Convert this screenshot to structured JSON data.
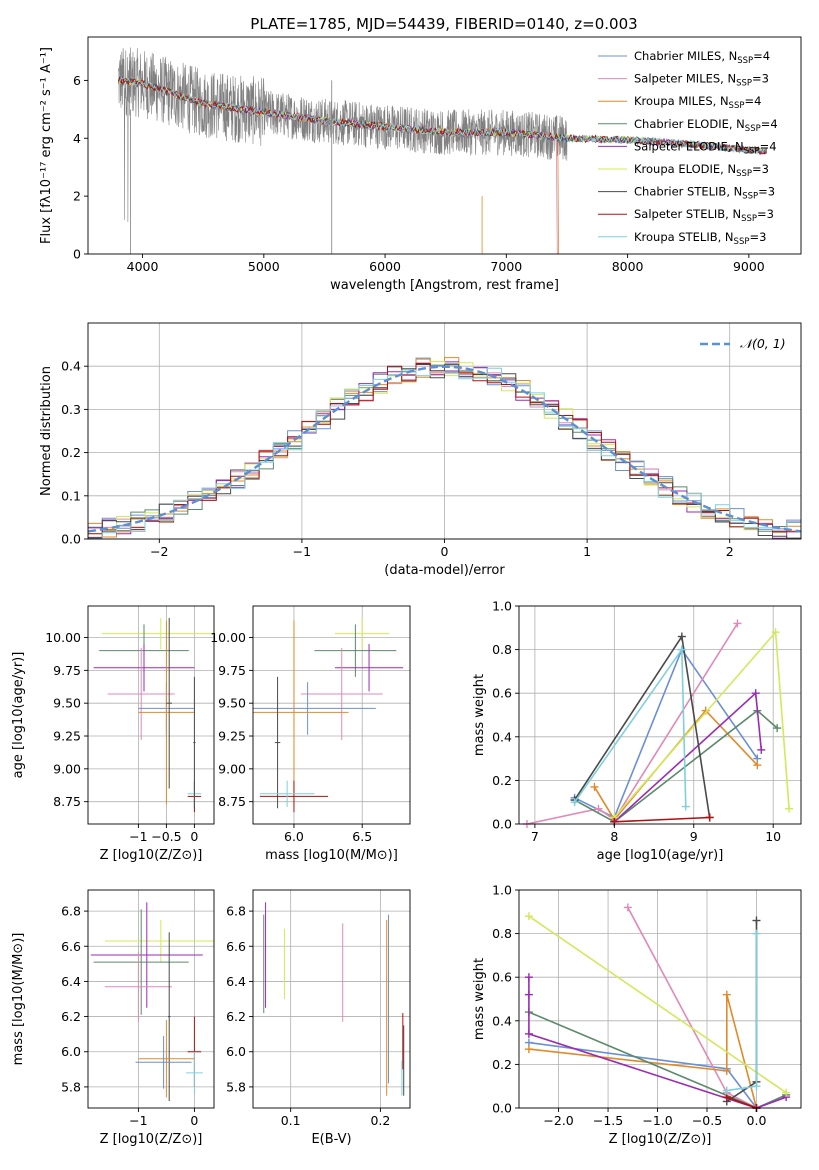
{
  "figure": {
    "title": "PLATE=1785, MJD=54439, FIBERID=0140, z=0.003"
  },
  "models": [
    {
      "name": "Chabrier MILES",
      "nssp": "4",
      "color": "#6b8fd6"
    },
    {
      "name": "Salpeter MILES",
      "nssp": "3",
      "color": "#e089b8"
    },
    {
      "name": "Kroupa MILES",
      "nssp": "4",
      "color": "#e08a2a"
    },
    {
      "name": "Chabrier ELODIE",
      "nssp": "4",
      "color": "#5b8a6a"
    },
    {
      "name": "Salpeter ELODIE",
      "nssp": "4",
      "color": "#9b2bb3"
    },
    {
      "name": "Kroupa ELODIE",
      "nssp": "3",
      "color": "#d4e85a"
    },
    {
      "name": "Chabrier STELIB",
      "nssp": "3",
      "color": "#4a4a4a"
    },
    {
      "name": "Salpeter STELIB",
      "nssp": "3",
      "color": "#b01010"
    },
    {
      "name": "Kroupa STELIB",
      "nssp": "3",
      "color": "#7fd0dc"
    }
  ],
  "chart_data": [
    {
      "id": "spectrum",
      "type": "line",
      "xlabel": "wavelength [Angstrom, rest frame]",
      "ylabel": "Flux [fλ10⁻¹⁷ erg cm⁻² s⁻¹ A⁻¹]",
      "xlim": [
        3550,
        9430
      ],
      "ylim": [
        0,
        7.5
      ],
      "xticks": [
        4000,
        5000,
        6000,
        7000,
        8000,
        9000
      ],
      "yticks": [
        0,
        2,
        4,
        6
      ],
      "legend": "top-right",
      "data_color": "#808080",
      "data_description_points": [
        [
          3800,
          6.0
        ],
        [
          4000,
          5.9
        ],
        [
          4500,
          5.2
        ],
        [
          5000,
          4.9
        ],
        [
          5500,
          4.6
        ],
        [
          6000,
          4.4
        ],
        [
          6500,
          4.2
        ],
        [
          7000,
          4.2
        ],
        [
          7500,
          4.0
        ],
        [
          8000,
          3.95
        ],
        [
          8500,
          3.8
        ],
        [
          9000,
          3.6
        ],
        [
          9150,
          3.55
        ]
      ],
      "model_ends": [
        {
          "model": 0,
          "end": 9150
        },
        {
          "model": 1,
          "end": 7420
        },
        {
          "model": 2,
          "end": 7430
        },
        {
          "model": 3,
          "end": 9150
        },
        {
          "model": 4,
          "end": 9150
        },
        {
          "model": 5,
          "end": 9150
        },
        {
          "model": 6,
          "end": 9150
        },
        {
          "model": 7,
          "end": 9150
        },
        {
          "model": 8,
          "end": 9150
        }
      ]
    },
    {
      "id": "residuals",
      "type": "line",
      "xlabel": "(data-model)/error",
      "ylabel": "Normed distribution",
      "xlim": [
        -2.5,
        2.5
      ],
      "ylim": [
        0,
        0.5
      ],
      "xticks": [
        -2,
        -1,
        0,
        1,
        2
      ],
      "yticks": [
        0.0,
        0.1,
        0.2,
        0.3,
        0.4
      ],
      "gaussian_label": "𝒩(0, 1)",
      "gaussian_color": "#5b8fd6",
      "legend": "top-right"
    },
    {
      "id": "age_vs_Z",
      "type": "scatter",
      "xlabel": "Z [log10(Z/Z⊙)]",
      "ylabel": "age  [log10(age/yr)]",
      "xlim": [
        -1.9,
        0.35
      ],
      "ylim": [
        8.58,
        10.24
      ],
      "xticks": [
        -1,
        -0.5,
        0
      ],
      "yticks": [
        8.75,
        9.0,
        9.25,
        9.5,
        9.75,
        10.0
      ],
      "points": [
        {
          "m": 5,
          "x": -0.6,
          "y": 10.03,
          "xe": 1.05,
          "ye": 0.12
        },
        {
          "m": 3,
          "x": -0.9,
          "y": 9.9,
          "xe": 0.8,
          "ye": 0.2
        },
        {
          "m": 4,
          "x": -0.9,
          "y": 9.77,
          "xe": 0.9,
          "ye": 0.18
        },
        {
          "m": 1,
          "x": -0.95,
          "y": 9.57,
          "xe": 0.6,
          "ye": 0.35
        },
        {
          "m": 0,
          "x": -0.5,
          "y": 9.46,
          "xe": 0.5,
          "ye": 0.2
        },
        {
          "m": 2,
          "x": -0.5,
          "y": 9.43,
          "xe": 0.5,
          "ye": 0.7
        },
        {
          "m": 6,
          "x": -0.45,
          "y": 9.5,
          "xe": 0.05,
          "ye": 0.65
        },
        {
          "m": 7,
          "x": 0.0,
          "y": 8.79,
          "xe": 0.12,
          "ye": 0.12
        },
        {
          "m": 8,
          "x": 0.0,
          "y": 8.81,
          "xe": 0.12,
          "ye": 0.1
        },
        {
          "m": 6,
          "x": 0.0,
          "y": 9.2,
          "xe": 0.02,
          "ye": 0.5
        }
      ]
    },
    {
      "id": "age_vs_mass",
      "type": "scatter",
      "xlabel": "mass [log10(M/M⊙)]",
      "ylabel": "",
      "xlim": [
        5.7,
        6.85
      ],
      "ylim": [
        8.58,
        10.24
      ],
      "xticks": [
        6.0,
        6.5
      ],
      "yticks": [
        8.75,
        9.0,
        9.25,
        9.5,
        9.75,
        10.0
      ],
      "points": [
        {
          "m": 5,
          "x": 6.5,
          "y": 10.03,
          "xe": 0.2,
          "ye": 0.12
        },
        {
          "m": 3,
          "x": 6.45,
          "y": 9.9,
          "xe": 0.3,
          "ye": 0.2
        },
        {
          "m": 4,
          "x": 6.55,
          "y": 9.77,
          "xe": 0.25,
          "ye": 0.18
        },
        {
          "m": 1,
          "x": 6.35,
          "y": 9.57,
          "xe": 0.3,
          "ye": 0.35
        },
        {
          "m": 0,
          "x": 6.1,
          "y": 9.46,
          "xe": 0.5,
          "ye": 0.2
        },
        {
          "m": 2,
          "x": 6.0,
          "y": 9.43,
          "xe": 0.4,
          "ye": 0.7
        },
        {
          "m": 6,
          "x": 5.88,
          "y": 9.2,
          "xe": 0.02,
          "ye": 0.5
        },
        {
          "m": 7,
          "x": 6.0,
          "y": 8.79,
          "xe": 0.25,
          "ye": 0.12
        },
        {
          "m": 8,
          "x": 5.95,
          "y": 8.81,
          "xe": 0.2,
          "ye": 0.1
        }
      ]
    },
    {
      "id": "weight_vs_age",
      "type": "line",
      "xlabel": "age  [log10(age/yr)]",
      "ylabel": "mass weight",
      "xlim": [
        6.8,
        10.35
      ],
      "ylim": [
        0.0,
        1.0
      ],
      "xticks": [
        7,
        8,
        9,
        10
      ],
      "yticks": [
        0.0,
        0.2,
        0.4,
        0.6,
        0.8,
        1.0
      ],
      "series": [
        {
          "m": 0,
          "x": [
            7.5,
            8.0,
            8.85,
            9.8
          ],
          "y": [
            0.12,
            0.03,
            0.8,
            0.3
          ]
        },
        {
          "m": 1,
          "x": [
            6.9,
            7.8,
            8.0,
            9.55
          ],
          "y": [
            0.0,
            0.07,
            0.02,
            0.92
          ]
        },
        {
          "m": 2,
          "x": [
            7.75,
            8.0,
            9.15,
            9.8
          ],
          "y": [
            0.17,
            0.02,
            0.52,
            0.27
          ]
        },
        {
          "m": 3,
          "x": [
            7.5,
            8.0,
            9.8,
            10.05
          ],
          "y": [
            0.11,
            0.01,
            0.52,
            0.44
          ]
        },
        {
          "m": 4,
          "x": [
            8.0,
            9.78,
            9.85
          ],
          "y": [
            0.01,
            0.6,
            0.34
          ]
        },
        {
          "m": 5,
          "x": [
            8.0,
            10.03,
            10.2
          ],
          "y": [
            0.03,
            0.88,
            0.07
          ]
        },
        {
          "m": 6,
          "x": [
            7.5,
            8.85,
            9.2
          ],
          "y": [
            0.11,
            0.86,
            0.03
          ]
        },
        {
          "m": 7,
          "x": [
            8.0,
            9.2
          ],
          "y": [
            0.01,
            0.03
          ]
        },
        {
          "m": 8,
          "x": [
            7.5,
            8.85,
            8.9
          ],
          "y": [
            0.1,
            0.8,
            0.08
          ]
        }
      ]
    },
    {
      "id": "mass_vs_Z",
      "type": "scatter",
      "xlabel": "Z [log10(Z/Z⊙)]",
      "ylabel": "mass [log10(M/M⊙)]",
      "xlim": [
        -1.9,
        0.35
      ],
      "ylim": [
        5.68,
        6.92
      ],
      "xticks": [
        -1,
        0
      ],
      "yticks": [
        5.8,
        6.0,
        6.2,
        6.4,
        6.6,
        6.8
      ],
      "points": [
        {
          "m": 5,
          "x": -0.6,
          "y": 6.63,
          "xe": 1.0,
          "ye": 0.12
        },
        {
          "m": 4,
          "x": -0.85,
          "y": 6.55,
          "xe": 1.0,
          "ye": 0.3
        },
        {
          "m": 3,
          "x": -0.95,
          "y": 6.51,
          "xe": 0.85,
          "ye": 0.3
        },
        {
          "m": 1,
          "x": -1.0,
          "y": 6.37,
          "xe": 0.6,
          "ye": 0.2
        },
        {
          "m": 6,
          "x": -0.45,
          "y": 6.2,
          "xe": 0.02,
          "ye": 0.48
        },
        {
          "m": 2,
          "x": -0.5,
          "y": 5.96,
          "xe": 0.5,
          "ye": 0.22
        },
        {
          "m": 0,
          "x": -0.55,
          "y": 5.94,
          "xe": 0.5,
          "ye": 0.15
        },
        {
          "m": 7,
          "x": 0.0,
          "y": 6.0,
          "xe": 0.12,
          "ye": 0.2
        },
        {
          "m": 8,
          "x": 0.0,
          "y": 5.88,
          "xe": 0.15,
          "ye": 0.12
        }
      ]
    },
    {
      "id": "mass_vs_ebv",
      "type": "scatter",
      "xlabel": "E(B-V)",
      "ylabel": "",
      "xlim": [
        0.058,
        0.233
      ],
      "ylim": [
        5.68,
        6.92
      ],
      "xticks": [
        0.1,
        0.2
      ],
      "yticks": [
        5.8,
        6.0,
        6.2,
        6.4,
        6.6,
        6.8
      ],
      "points": [
        {
          "m": 4,
          "x": 0.072,
          "y": 6.55,
          "ye": 0.3
        },
        {
          "m": 3,
          "x": 0.07,
          "y": 6.5,
          "ye": 0.28
        },
        {
          "m": 5,
          "x": 0.093,
          "y": 6.5,
          "ye": 0.2
        },
        {
          "m": 1,
          "x": 0.158,
          "y": 6.45,
          "ye": 0.28
        },
        {
          "m": 2,
          "x": 0.207,
          "y": 6.25,
          "ye": 0.5
        },
        {
          "m": 0,
          "x": 0.209,
          "y": 6.3,
          "ye": 0.48
        },
        {
          "m": 6,
          "x": 0.226,
          "y": 5.95,
          "ye": 0.2
        },
        {
          "m": 7,
          "x": 0.225,
          "y": 6.06,
          "ye": 0.16
        },
        {
          "m": 8,
          "x": 0.224,
          "y": 5.85,
          "ye": 0.1
        }
      ]
    },
    {
      "id": "weight_vs_Z",
      "type": "line",
      "xlabel": "Z [log10(Z/Z⊙)]",
      "ylabel": "mass weight",
      "xlim": [
        -2.4,
        0.45
      ],
      "ylim": [
        0.0,
        1.0
      ],
      "xticks": [
        -2.0,
        -1.5,
        -1.0,
        -0.5,
        0.0
      ],
      "yticks": [
        0.0,
        0.2,
        0.4,
        0.6,
        0.8,
        1.0
      ],
      "series": [
        {
          "m": 0,
          "x": [
            -2.3,
            -0.3,
            0.0
          ],
          "y": [
            0.3,
            0.18,
            0.0
          ]
        },
        {
          "m": 1,
          "x": [
            -1.3,
            -0.3,
            0.0
          ],
          "y": [
            0.92,
            0.07,
            0.0
          ]
        },
        {
          "m": 2,
          "x": [
            -2.3,
            -0.3,
            -0.3,
            0.0
          ],
          "y": [
            0.27,
            0.17,
            0.52,
            0.0
          ]
        },
        {
          "m": 3,
          "x": [
            -2.3,
            0.0,
            0.3
          ],
          "y": [
            0.44,
            0.0,
            0.06
          ]
        },
        {
          "m": 4,
          "x": [
            -2.3,
            -2.3,
            -2.3,
            0.0,
            0.3
          ],
          "y": [
            0.6,
            0.52,
            0.34,
            0.0,
            0.05
          ]
        },
        {
          "m": 5,
          "x": [
            -2.3,
            0.3
          ],
          "y": [
            0.88,
            0.07
          ]
        },
        {
          "m": 6,
          "x": [
            -0.3,
            0.0,
            0.0
          ],
          "y": [
            0.03,
            0.12,
            0.86
          ]
        },
        {
          "m": 7,
          "x": [
            -0.3,
            0.0
          ],
          "y": [
            0.05,
            0.0
          ]
        },
        {
          "m": 8,
          "x": [
            -0.3,
            0.0,
            0.0
          ],
          "y": [
            0.08,
            0.1,
            0.8
          ]
        }
      ]
    }
  ]
}
